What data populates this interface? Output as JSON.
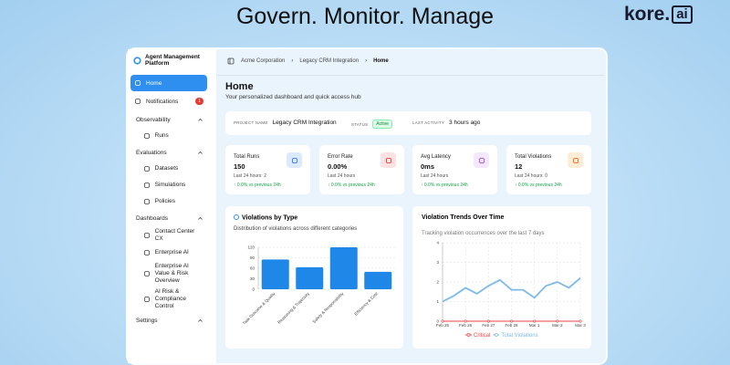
{
  "header": {
    "title": "Govern. Monitor. Manage",
    "logo": "kore.",
    "logo_badge": "ai"
  },
  "sidebar": {
    "title": "Agent Management Platform",
    "nav": [
      {
        "label": "Home"
      },
      {
        "label": "Notifications",
        "badge": "1"
      }
    ],
    "sections": [
      {
        "heading": "Observability",
        "items": [
          "Runs"
        ]
      },
      {
        "heading": "Evaluations",
        "items": [
          "Datasets",
          "Simulations",
          "Policies"
        ]
      },
      {
        "heading": "Dashboards",
        "items": [
          "Contact Center CX",
          "Enterprise AI",
          "Enterprise AI Value & Risk Overview",
          "AI Risk & Compliance Control"
        ]
      }
    ],
    "footer": "Settings"
  },
  "breadcrumb": [
    "Acme Corporation",
    "Legacy CRM Integration",
    "Home"
  ],
  "page": {
    "title": "Home",
    "subtitle": "Your personalized dashboard and quick access hub"
  },
  "project": [
    {
      "label": "PROJECT NAME",
      "value": "Legacy CRM Integration"
    },
    {
      "label": "STATUS",
      "value": "Active"
    },
    {
      "label": "LAST ACTIVITY",
      "value": "3 hours ago"
    }
  ],
  "stats": [
    {
      "title": "Total Runs",
      "value": "150",
      "period": "Last 24 hours: 2",
      "change": "↑ 0.0% vs previous 24h"
    },
    {
      "title": "Error Rate",
      "value": "0.00%",
      "period": "Last 24 hours",
      "change": "↑ 0.0% vs previous 24h"
    },
    {
      "title": "Avg Latency",
      "value": "0ms",
      "period": "Last 24 hours",
      "change": "↑ 0.0% vs previous 24h"
    },
    {
      "title": "Total Violations",
      "value": "12",
      "period": "Last 24 hours: 0",
      "change": "↑ 0.0% vs previous 24h"
    }
  ],
  "chart_data": [
    {
      "type": "bar",
      "title": "Violations by Type",
      "subtitle": "Distribution of violations across different categories",
      "categories": [
        "Task Outcome & Quality",
        "Reasoning & Trajectory",
        "Safety & Responsibility",
        "Efficiency & Cost"
      ],
      "values": [
        85,
        63,
        120,
        50
      ],
      "color": "#1f87e8",
      "ylim": [
        0,
        120
      ],
      "yticks": [
        0,
        30,
        60,
        90,
        120
      ],
      "grid": true
    },
    {
      "type": "line",
      "title": "Violation Trends Over Time",
      "subtitle": "Tracking violation occurrences over the last 7 days",
      "categories": [
        "Feb 25",
        null,
        "Feb 26",
        null,
        "Feb 27",
        null,
        "Feb 28",
        null,
        "Mar 1",
        null,
        "Mar 2",
        null,
        "Mar 3"
      ],
      "series": [
        {
          "name": "Critical",
          "color": "#ef4444",
          "values": [
            0,
            0,
            0,
            0,
            0,
            0,
            0,
            0,
            0,
            0,
            0,
            0,
            0
          ]
        },
        {
          "name": "Total Violations",
          "color": "#7db9ea",
          "values": [
            1.0,
            1.3,
            1.7,
            1.4,
            1.8,
            2.1,
            1.6,
            1.6,
            1.2,
            1.8,
            2.0,
            1.7,
            2.2
          ]
        }
      ],
      "ylim": [
        0,
        4
      ],
      "yticks": [
        0,
        1,
        2,
        3,
        4
      ],
      "grid": true,
      "legend": "bottom"
    }
  ]
}
